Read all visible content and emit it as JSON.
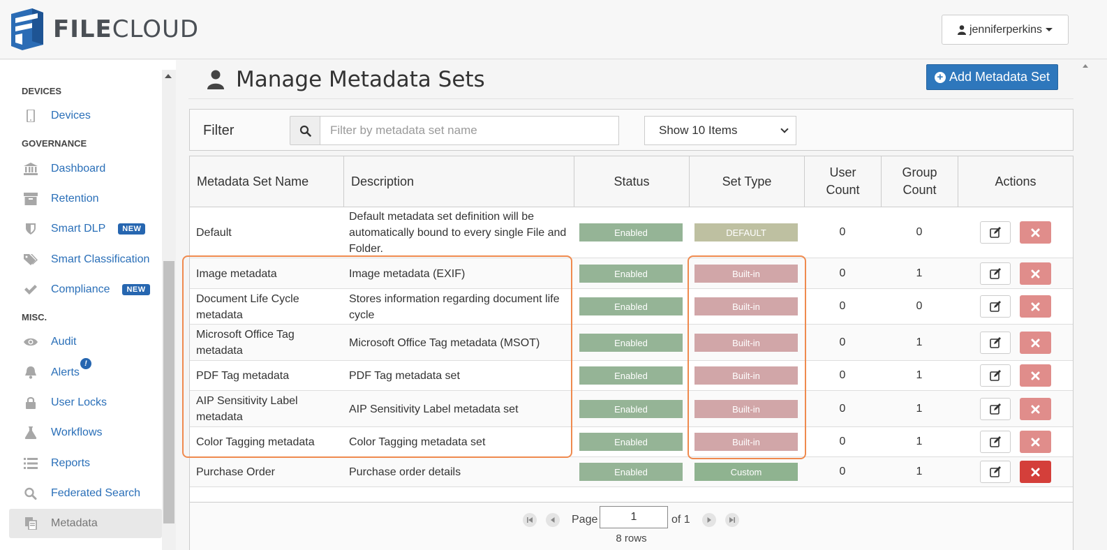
{
  "app": {
    "logo_text_bold": "FILE",
    "logo_text_rest": "CLOUD",
    "user_name": "jenniferperkins",
    "brand_color": "#2e77bc"
  },
  "sidebar": {
    "sections": [
      {
        "heading": "DEVICES",
        "items": [
          {
            "label": "Devices",
            "icon": "tablet-icon"
          }
        ]
      },
      {
        "heading": "GOVERNANCE",
        "items": [
          {
            "label": "Dashboard",
            "icon": "bank-icon"
          },
          {
            "label": "Retention",
            "icon": "archive-icon"
          },
          {
            "label": "Smart DLP",
            "icon": "shield-icon",
            "badge": "NEW"
          },
          {
            "label": "Smart Classification",
            "icon": "tags-icon"
          },
          {
            "label": "Compliance",
            "icon": "check-icon",
            "badge": "NEW"
          }
        ]
      },
      {
        "heading": "MISC.",
        "items": [
          {
            "label": "Audit",
            "icon": "eye-icon"
          },
          {
            "label": "Alerts",
            "icon": "bell-icon",
            "alert": "!"
          },
          {
            "label": "User Locks",
            "icon": "lock-icon"
          },
          {
            "label": "Workflows",
            "icon": "flask-icon"
          },
          {
            "label": "Reports",
            "icon": "list-icon"
          },
          {
            "label": "Federated Search",
            "icon": "search-icon"
          },
          {
            "label": "Metadata",
            "icon": "copy-icon",
            "active": true
          }
        ]
      }
    ]
  },
  "main": {
    "title": "Manage Metadata Sets",
    "add_button": "Add Metadata Set",
    "filter": {
      "label": "Filter",
      "placeholder": "Filter by metadata set name",
      "show_select": "Show 10 Items"
    },
    "table": {
      "columns": [
        "Metadata Set Name",
        "Description",
        "Status",
        "Set Type",
        "User Count",
        "Group Count",
        "Actions"
      ],
      "rows": [
        {
          "name": "Default",
          "description": "Default metadata set definition will be automatically bound to every single File and Folder.",
          "status": "Enabled",
          "set_type": "DEFAULT",
          "user_count": "0",
          "group_count": "0"
        },
        {
          "name": "Image metadata",
          "description": "Image metadata (EXIF)",
          "status": "Enabled",
          "set_type": "Built-in",
          "user_count": "0",
          "group_count": "1"
        },
        {
          "name": "Document Life Cycle metadata",
          "description": "Stores information regarding document life cycle",
          "status": "Enabled",
          "set_type": "Built-in",
          "user_count": "0",
          "group_count": "0"
        },
        {
          "name": "Microsoft Office Tag metadata",
          "description": "Microsoft Office Tag metadata (MSOT)",
          "status": "Enabled",
          "set_type": "Built-in",
          "user_count": "0",
          "group_count": "1"
        },
        {
          "name": "PDF Tag metadata",
          "description": "PDF Tag metadata set",
          "status": "Enabled",
          "set_type": "Built-in",
          "user_count": "0",
          "group_count": "1"
        },
        {
          "name": "AIP Sensitivity Label metadata",
          "description": "AIP Sensitivity Label metadata set",
          "status": "Enabled",
          "set_type": "Built-in",
          "user_count": "0",
          "group_count": "1"
        },
        {
          "name": "Color Tagging metadata",
          "description": "Color Tagging metadata set",
          "status": "Enabled",
          "set_type": "Built-in",
          "user_count": "0",
          "group_count": "1"
        },
        {
          "name": "Purchase Order",
          "description": "Purchase order details",
          "status": "Enabled",
          "set_type": "Custom",
          "user_count": "0",
          "group_count": "1"
        }
      ]
    },
    "pager": {
      "page_label": "Page",
      "page_value": "1",
      "of_label": "of 1",
      "rows_label": "8 rows"
    }
  },
  "colors": {
    "enabled": "#95b496",
    "default": "#bec0a1",
    "builtin": "#d1a6a8",
    "custom": "#8fb390",
    "delete": "#e08d8b",
    "highlight": "#ef8a4e"
  }
}
